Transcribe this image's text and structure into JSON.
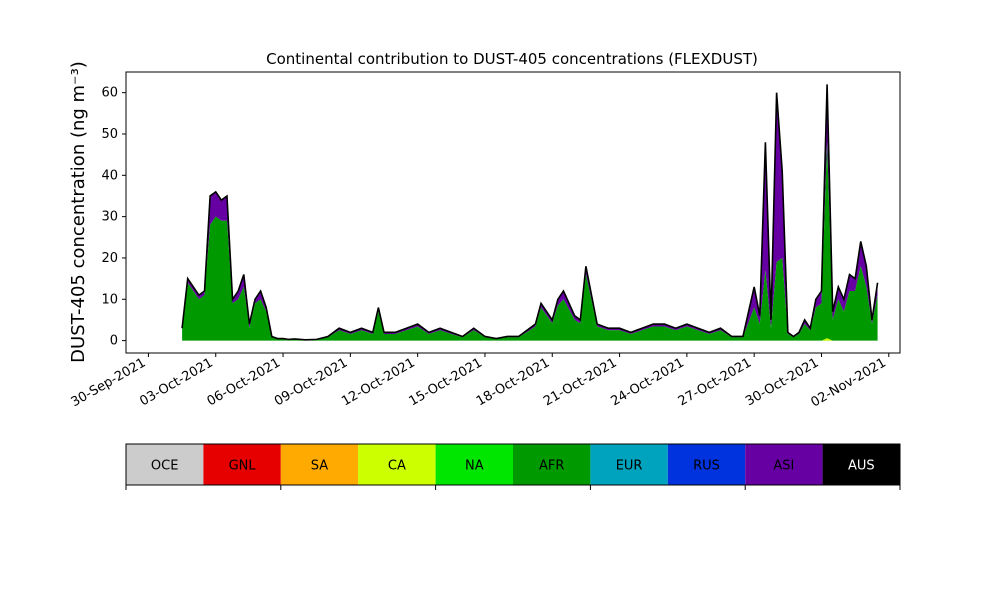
{
  "chart_data": {
    "type": "area",
    "title": "Continental contribution to DUST-405 concentrations (FLEXDUST)",
    "ylabel": "DUST-405 concentration (ng m⁻³)",
    "xlabel": "",
    "x_range": [
      "2021-09-29",
      "2021-11-02T12:00"
    ],
    "ylim": [
      -3,
      65
    ],
    "y_ticks": [
      0,
      10,
      20,
      30,
      40,
      50,
      60
    ],
    "x_ticks": [
      {
        "date": "2021-09-30",
        "label": "30-Sep-2021"
      },
      {
        "date": "2021-10-03",
        "label": "03-Oct-2021"
      },
      {
        "date": "2021-10-06",
        "label": "06-Oct-2021"
      },
      {
        "date": "2021-10-09",
        "label": "09-Oct-2021"
      },
      {
        "date": "2021-10-12",
        "label": "12-Oct-2021"
      },
      {
        "date": "2021-10-15",
        "label": "15-Oct-2021"
      },
      {
        "date": "2021-10-18",
        "label": "18-Oct-2021"
      },
      {
        "date": "2021-10-21",
        "label": "21-Oct-2021"
      },
      {
        "date": "2021-10-24",
        "label": "24-Oct-2021"
      },
      {
        "date": "2021-10-27",
        "label": "27-Oct-2021"
      },
      {
        "date": "2021-10-30",
        "label": "30-Oct-2021"
      },
      {
        "date": "2021-11-02",
        "label": "02-Nov-2021"
      }
    ],
    "grid": false,
    "legend_position": "bottom colorbar",
    "legend": [
      {
        "name": "OCE",
        "color": "#cccccc"
      },
      {
        "name": "GNL",
        "color": "#e60000"
      },
      {
        "name": "SA",
        "color": "#ffaa00"
      },
      {
        "name": "CA",
        "color": "#ccff00"
      },
      {
        "name": "NA",
        "color": "#00e600"
      },
      {
        "name": "AFR",
        "color": "#009900"
      },
      {
        "name": "EUR",
        "color": "#00a3bd"
      },
      {
        "name": "RUS",
        "color": "#0033dd"
      },
      {
        "name": "ASI",
        "color": "#6600a3"
      },
      {
        "name": "AUS",
        "color": "#000000"
      }
    ],
    "x": [
      "2021-10-01T12:00",
      "2021-10-01T18:00",
      "2021-10-02T00:00",
      "2021-10-02T06:00",
      "2021-10-02T12:00",
      "2021-10-02T18:00",
      "2021-10-03T00:00",
      "2021-10-03T06:00",
      "2021-10-03T12:00",
      "2021-10-03T18:00",
      "2021-10-04T00:00",
      "2021-10-04T06:00",
      "2021-10-04T12:00",
      "2021-10-04T18:00",
      "2021-10-05T00:00",
      "2021-10-05T06:00",
      "2021-10-05T12:00",
      "2021-10-05T18:00",
      "2021-10-06T00:00",
      "2021-10-06T06:00",
      "2021-10-06T12:00",
      "2021-10-07T00:00",
      "2021-10-07T12:00",
      "2021-10-08T00:00",
      "2021-10-08T12:00",
      "2021-10-09T00:00",
      "2021-10-09T12:00",
      "2021-10-10T00:00",
      "2021-10-10T06:00",
      "2021-10-10T12:00",
      "2021-10-11T00:00",
      "2021-10-11T12:00",
      "2021-10-12T00:00",
      "2021-10-12T12:00",
      "2021-10-13T00:00",
      "2021-10-13T12:00",
      "2021-10-14T00:00",
      "2021-10-14T12:00",
      "2021-10-15T00:00",
      "2021-10-15T12:00",
      "2021-10-16T00:00",
      "2021-10-16T12:00",
      "2021-10-17T00:00",
      "2021-10-17T06:00",
      "2021-10-17T12:00",
      "2021-10-18T00:00",
      "2021-10-18T06:00",
      "2021-10-18T12:00",
      "2021-10-19T00:00",
      "2021-10-19T06:00",
      "2021-10-19T12:00",
      "2021-10-20T00:00",
      "2021-10-20T12:00",
      "2021-10-21T00:00",
      "2021-10-21T12:00",
      "2021-10-22T00:00",
      "2021-10-22T12:00",
      "2021-10-23T00:00",
      "2021-10-23T12:00",
      "2021-10-24T00:00",
      "2021-10-24T12:00",
      "2021-10-25T00:00",
      "2021-10-25T12:00",
      "2021-10-26T00:00",
      "2021-10-26T12:00",
      "2021-10-27T00:00",
      "2021-10-27T06:00",
      "2021-10-27T12:00",
      "2021-10-27T18:00",
      "2021-10-28T00:00",
      "2021-10-28T06:00",
      "2021-10-28T12:00",
      "2021-10-28T18:00",
      "2021-10-29T00:00",
      "2021-10-29T06:00",
      "2021-10-29T12:00",
      "2021-10-29T18:00",
      "2021-10-30T00:00",
      "2021-10-30T06:00",
      "2021-10-30T12:00",
      "2021-10-30T18:00",
      "2021-10-31T00:00",
      "2021-10-31T06:00",
      "2021-10-31T12:00",
      "2021-10-31T18:00",
      "2021-11-01T00:00",
      "2021-11-01T06:00",
      "2021-11-01T12:00"
    ],
    "total": [
      3,
      15,
      13,
      11,
      12,
      35,
      36,
      34,
      35,
      10,
      12,
      16,
      4,
      10,
      12,
      8,
      1,
      0.5,
      0.5,
      0.3,
      0.4,
      0.2,
      0.3,
      1,
      3,
      2,
      3,
      2,
      8,
      2,
      2,
      3,
      4,
      2,
      3,
      2,
      1,
      3,
      1,
      0.5,
      1,
      1,
      3,
      4,
      9,
      5,
      10,
      12,
      6,
      5,
      18,
      4,
      3,
      3,
      2,
      3,
      4,
      4,
      3,
      4,
      3,
      2,
      3,
      1,
      1,
      13,
      6,
      48,
      5,
      60,
      41,
      2,
      1,
      2,
      5,
      3,
      10,
      12,
      62,
      7,
      13,
      10,
      16,
      15,
      24,
      18,
      5,
      14
    ],
    "asia": [
      0.5,
      1,
      1,
      1,
      1,
      5,
      5,
      4,
      5,
      1,
      2,
      3,
      1,
      1,
      2,
      1,
      0.1,
      0.1,
      0.1,
      0.1,
      0.1,
      0.1,
      0.1,
      0.2,
      0.5,
      0.4,
      0.5,
      0.4,
      1,
      0.4,
      0.4,
      0.5,
      0.6,
      0.4,
      0.5,
      0.4,
      0.2,
      0.5,
      0.2,
      0.1,
      0.2,
      0.2,
      0.5,
      0.6,
      1,
      0.8,
      1.5,
      2,
      1,
      0.8,
      2,
      0.6,
      0.5,
      0.5,
      0.4,
      0.5,
      0.6,
      0.6,
      0.5,
      0.6,
      0.5,
      0.4,
      0.5,
      0.2,
      0.2,
      5,
      2,
      30,
      2,
      40,
      20,
      0.4,
      0.2,
      0.4,
      1,
      0.5,
      2,
      3,
      12,
      2,
      3,
      3,
      4,
      3,
      6,
      5,
      1,
      3
    ],
    "africa": [
      2.5,
      14,
      12,
      10,
      11,
      28,
      30,
      29,
      29,
      9,
      10,
      13,
      3,
      9,
      10,
      7,
      0.9,
      0.4,
      0.4,
      0.2,
      0.3,
      0.1,
      0.2,
      0.8,
      2.5,
      1.6,
      2.5,
      1.6,
      7,
      1.6,
      1.6,
      2.5,
      3.4,
      1.6,
      2.5,
      1.6,
      0.8,
      2.5,
      0.8,
      0.4,
      0.8,
      0.8,
      2.5,
      3.4,
      8,
      4.2,
      8.5,
      10,
      5,
      4.2,
      16,
      3.4,
      2.5,
      2.5,
      1.6,
      2.5,
      3.4,
      3.4,
      2.5,
      3.4,
      2.5,
      1.6,
      2.5,
      0.8,
      0.8,
      8,
      4,
      17,
      3,
      19,
      20,
      1.6,
      0.8,
      1.6,
      4,
      2.5,
      8,
      9,
      48,
      5,
      10,
      7,
      12,
      12,
      18,
      13,
      4,
      11
    ],
    "sa_ca": [
      0,
      0,
      0,
      0,
      0,
      0,
      0,
      0,
      0,
      0,
      0,
      0,
      0,
      0,
      0,
      0,
      0,
      0,
      0,
      0,
      0,
      0,
      0,
      0,
      0,
      0,
      0,
      0,
      0,
      0,
      0,
      0,
      0,
      0,
      0,
      0,
      0,
      0,
      0,
      0,
      0,
      0,
      0,
      0,
      0,
      0,
      0,
      0,
      0,
      0,
      0,
      0,
      0,
      0,
      0,
      0,
      0,
      0,
      0,
      0,
      0,
      0,
      0,
      0,
      0,
      0,
      0,
      0,
      0,
      0,
      0,
      0,
      0,
      0,
      0,
      0,
      0,
      0,
      0.6,
      0,
      0,
      0,
      0,
      0,
      0,
      0,
      0,
      0
    ]
  }
}
